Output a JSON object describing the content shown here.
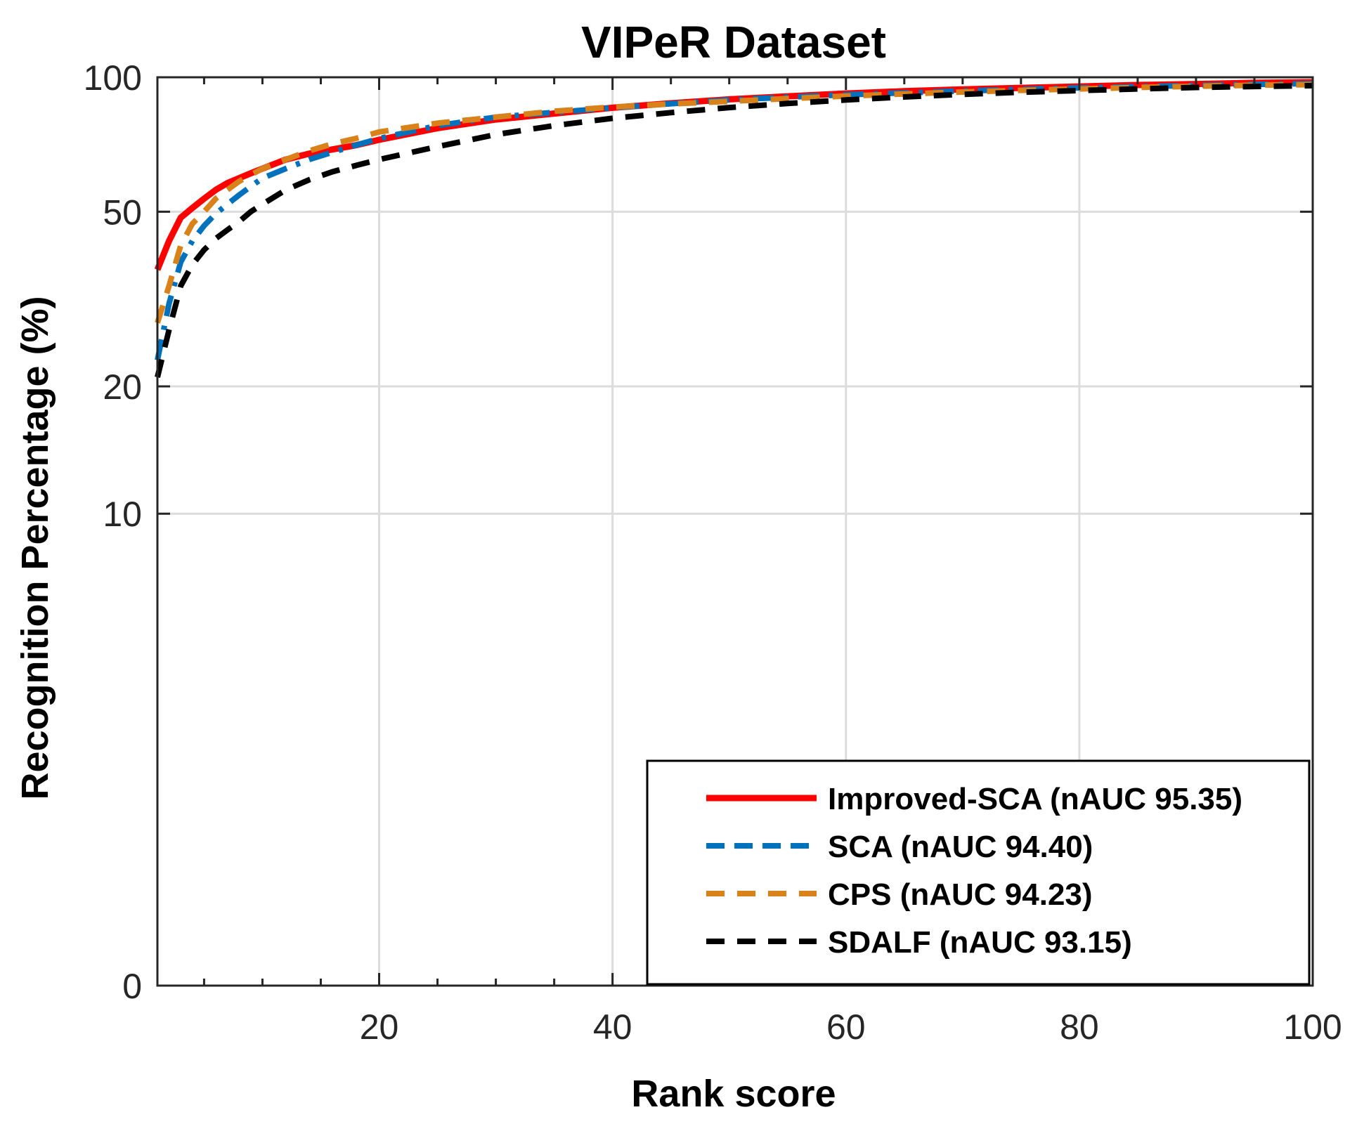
{
  "chart_data": {
    "type": "line",
    "title": "VIPeR Dataset",
    "xlabel": "Rank score",
    "ylabel": "Recognition Percentage (%)",
    "xlim": [
      1,
      100
    ],
    "ylim": [
      0,
      100
    ],
    "y_scale": "logarithmic-style (log10 of 1+y)",
    "grid": true,
    "legend_position": "bottom-right",
    "x_ticks": [
      20,
      40,
      60,
      80,
      100
    ],
    "y_ticks": [
      0,
      10,
      20,
      50,
      100
    ],
    "x": [
      1,
      2,
      3,
      4,
      5,
      6,
      7,
      8,
      9,
      10,
      12,
      14,
      16,
      18,
      20,
      25,
      30,
      35,
      40,
      45,
      50,
      55,
      60,
      65,
      70,
      75,
      80,
      85,
      90,
      95,
      100
    ],
    "series": [
      {
        "name": "Improved-SCA (nAUC 95.35)",
        "color": "#ff0000",
        "style": "solid",
        "values": [
          37,
          43,
          48.5,
          51,
          53.5,
          56,
          58,
          59.5,
          61,
          62.5,
          65.5,
          67.5,
          69,
          70.5,
          72.5,
          77,
          80.5,
          83,
          85.5,
          87.5,
          89.3,
          90.7,
          92,
          93.1,
          94,
          94.7,
          95.4,
          96.1,
          96.6,
          97.2,
          97.5
        ]
      },
      {
        "name": "SCA (nAUC 94.40)",
        "color": "#0072bd",
        "style": "dashdot",
        "values": [
          23,
          31,
          38.5,
          43,
          46.5,
          49.5,
          52,
          54.5,
          57,
          59.5,
          62.5,
          65.5,
          68,
          70.5,
          73,
          78,
          81.5,
          83.5,
          85.5,
          87.3,
          89,
          90.3,
          91.4,
          92.3,
          93.2,
          94,
          94.7,
          95.3,
          95.9,
          96.4,
          96.8
        ]
      },
      {
        "name": "CPS (nAUC 94.23)",
        "color": "#d9821a",
        "style": "dashed",
        "values": [
          28,
          34,
          42,
          47,
          50,
          53.5,
          56,
          58.5,
          60.5,
          62.5,
          65.5,
          68.5,
          71,
          73,
          75.5,
          79,
          81.5,
          84,
          85.8,
          87.2,
          88.4,
          89.6,
          90.8,
          91.8,
          92.7,
          93.5,
          94.2,
          94.9,
          95.5,
          96,
          96.3
        ]
      },
      {
        "name": "SDALF (nAUC 93.15)",
        "color": "#000000",
        "style": "dashed",
        "values": [
          21,
          27,
          34,
          38,
          41,
          43.5,
          45.5,
          47.5,
          50,
          52,
          56,
          59,
          61.5,
          63.5,
          65.5,
          70,
          74.5,
          78,
          81,
          83.4,
          85.6,
          87.4,
          89,
          90.4,
          91.6,
          92.6,
          93.4,
          94.2,
          94.9,
          95.4,
          95.8
        ]
      }
    ]
  }
}
